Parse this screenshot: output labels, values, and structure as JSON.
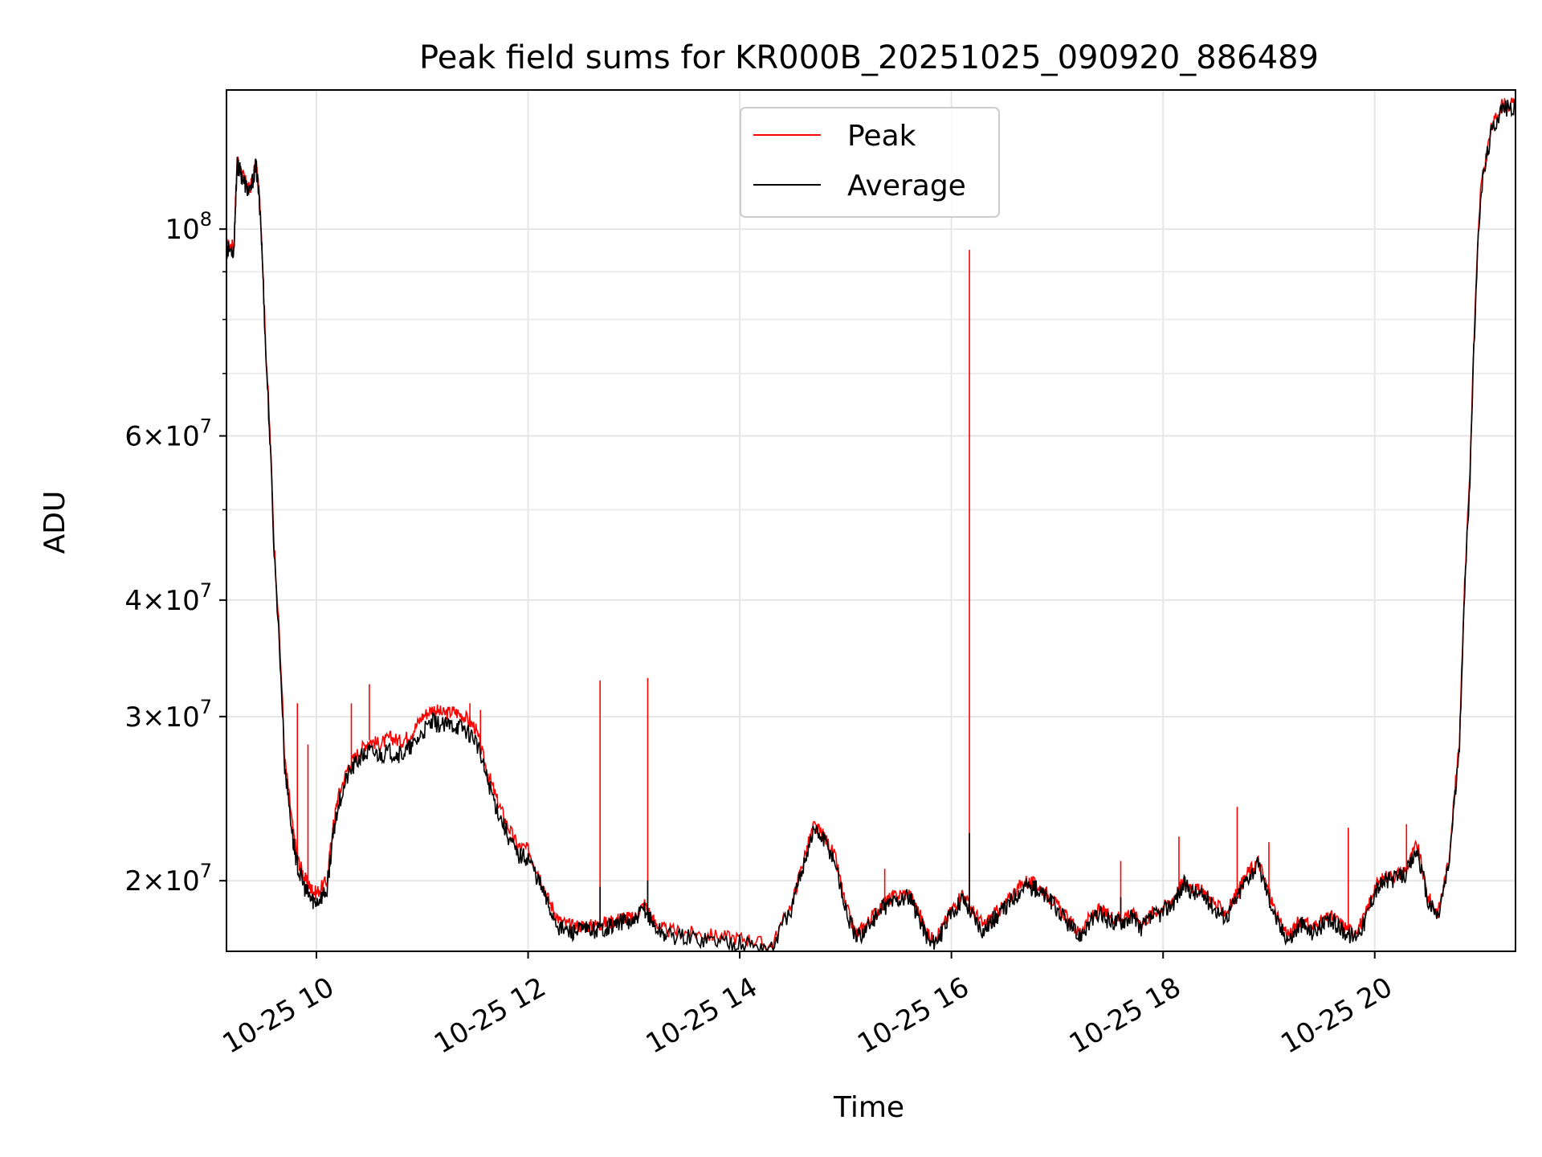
{
  "chart_data": {
    "type": "line",
    "title": "Peak field sums for KR000B_20251025_090920_886489",
    "xlabel": "Time",
    "ylabel": "ADU",
    "yscale": "log",
    "grid": true,
    "legend_position": "top-center",
    "xlim": [
      9.15,
      21.33
    ],
    "ylim": [
      16800000,
      141000000
    ],
    "x_ticks": [
      {
        "value": 10,
        "label": "10-25 10"
      },
      {
        "value": 12,
        "label": "10-25 12"
      },
      {
        "value": 14,
        "label": "10-25 14"
      },
      {
        "value": 16,
        "label": "10-25 16"
      },
      {
        "value": 18,
        "label": "10-25 18"
      },
      {
        "value": 20,
        "label": "10-25 20"
      }
    ],
    "y_ticks": [
      {
        "value": 100000000,
        "mantissa": "",
        "base": "10",
        "exp": "8"
      },
      {
        "value": 60000000,
        "mantissa": "6",
        "base": "10",
        "exp": "7"
      },
      {
        "value": 40000000,
        "mantissa": "4",
        "base": "10",
        "exp": "7"
      },
      {
        "value": 30000000,
        "mantissa": "3",
        "base": "10",
        "exp": "7"
      },
      {
        "value": 20000000,
        "mantissa": "2",
        "base": "10",
        "exp": "7"
      }
    ],
    "y_minor_ticks": [
      50000000,
      70000000,
      80000000,
      90000000
    ],
    "x_unit_note": "hours on 2025-10-25",
    "series": [
      {
        "name": "Peak",
        "color": "#ff0000",
        "x": [
          9.15,
          9.22,
          9.25,
          9.27,
          9.32,
          9.37,
          9.43,
          9.47,
          9.52,
          9.6,
          9.7,
          9.78,
          9.83,
          9.9,
          9.95,
          10.0,
          10.1,
          10.15,
          10.2,
          10.3,
          10.4,
          10.5,
          10.6,
          10.7,
          10.8,
          10.9,
          11.0,
          11.1,
          11.2,
          11.3,
          11.4,
          11.5,
          11.6,
          11.7,
          11.8,
          11.9,
          12.0,
          12.1,
          12.2,
          12.3,
          12.4,
          12.5,
          12.6,
          12.7,
          12.8,
          12.9,
          13.0,
          13.1,
          13.2,
          13.3,
          13.5,
          13.7,
          13.9,
          14.1,
          14.3,
          14.5,
          14.6,
          14.7,
          14.8,
          14.9,
          15.0,
          15.1,
          15.2,
          15.3,
          15.4,
          15.5,
          15.6,
          15.7,
          15.8,
          15.9,
          16.0,
          16.1,
          16.2,
          16.3,
          16.4,
          16.5,
          16.6,
          16.7,
          16.8,
          16.9,
          17.0,
          17.1,
          17.2,
          17.3,
          17.4,
          17.5,
          17.6,
          17.7,
          17.8,
          17.9,
          18.0,
          18.1,
          18.2,
          18.3,
          18.4,
          18.5,
          18.6,
          18.7,
          18.8,
          18.9,
          19.0,
          19.1,
          19.2,
          19.3,
          19.4,
          19.5,
          19.6,
          19.7,
          19.8,
          19.9,
          20.0,
          20.1,
          20.2,
          20.3,
          20.4,
          20.5,
          20.6,
          20.7,
          20.8,
          20.9,
          21.0,
          21.1,
          21.2,
          21.33
        ],
        "y": [
          96000000,
          96000000,
          118000000,
          117000000,
          113000000,
          110000000,
          118000000,
          105000000,
          75000000,
          46000000,
          27000000,
          22500000,
          21000000,
          20000000,
          19600000,
          19400000,
          20000000,
          22500000,
          24500000,
          26500000,
          27500000,
          28300000,
          28000000,
          28500000,
          28200000,
          28800000,
          30000000,
          30600000,
          30200000,
          30400000,
          30000000,
          29200000,
          26500000,
          24500000,
          23000000,
          21800000,
          21600000,
          20400000,
          19000000,
          18100000,
          17900000,
          17900000,
          17900000,
          18000000,
          18100000,
          18300000,
          18200000,
          18900000,
          18000000,
          17700000,
          17600000,
          17500000,
          17400000,
          17300000,
          17000000,
          19000000,
          21000000,
          22900000,
          22300000,
          21200000,
          18800000,
          17500000,
          18000000,
          18600000,
          19100000,
          19300000,
          19400000,
          18400000,
          17300000,
          17700000,
          18600000,
          19400000,
          18600000,
          17900000,
          18400000,
          18800000,
          19500000,
          20000000,
          19800000,
          19400000,
          18800000,
          18200000,
          17600000,
          18200000,
          18600000,
          18300000,
          18300000,
          18500000,
          18000000,
          18500000,
          18700000,
          19200000,
          20000000,
          19600000,
          19400000,
          18800000,
          18500000,
          19400000,
          20400000,
          21000000,
          19400000,
          18000000,
          17500000,
          18200000,
          17800000,
          18100000,
          18300000,
          17900000,
          17600000,
          18200000,
          19700000,
          20200000,
          20300000,
          20600000,
          21900000,
          19200000,
          18500000,
          21000000,
          28000000,
          55000000,
          110000000,
          128000000,
          136000000,
          136000000
        ]
      },
      {
        "name": "Average",
        "color": "#000000",
        "x": [
          9.15,
          9.22,
          9.25,
          9.27,
          9.32,
          9.37,
          9.43,
          9.47,
          9.52,
          9.6,
          9.7,
          9.78,
          9.83,
          9.9,
          9.95,
          10.0,
          10.1,
          10.15,
          10.2,
          10.3,
          10.4,
          10.5,
          10.6,
          10.7,
          10.8,
          10.9,
          11.0,
          11.1,
          11.2,
          11.3,
          11.4,
          11.5,
          11.6,
          11.7,
          11.8,
          11.9,
          12.0,
          12.1,
          12.2,
          12.3,
          12.4,
          12.5,
          12.6,
          12.7,
          12.8,
          12.9,
          13.0,
          13.1,
          13.2,
          13.3,
          13.5,
          13.7,
          13.9,
          14.1,
          14.3,
          14.5,
          14.6,
          14.7,
          14.8,
          14.9,
          15.0,
          15.1,
          15.2,
          15.3,
          15.4,
          15.5,
          15.6,
          15.7,
          15.8,
          15.9,
          16.0,
          16.1,
          16.2,
          16.3,
          16.4,
          16.5,
          16.6,
          16.7,
          16.8,
          16.9,
          17.0,
          17.1,
          17.2,
          17.3,
          17.4,
          17.5,
          17.6,
          17.7,
          17.8,
          17.9,
          18.0,
          18.1,
          18.2,
          18.3,
          18.4,
          18.5,
          18.6,
          18.7,
          18.8,
          18.9,
          19.0,
          19.1,
          19.2,
          19.3,
          19.4,
          19.5,
          19.6,
          19.7,
          19.8,
          19.9,
          20.0,
          20.1,
          20.2,
          20.3,
          20.4,
          20.5,
          20.6,
          20.7,
          20.8,
          20.9,
          21.0,
          21.1,
          21.2,
          21.33
        ],
        "y": [
          95000000,
          95000000,
          117000000,
          116000000,
          112000000,
          109000000,
          117000000,
          104000000,
          74000000,
          45000000,
          26500000,
          22000000,
          20500000,
          19500000,
          19100000,
          19000000,
          19500000,
          22000000,
          24000000,
          26000000,
          27000000,
          27500000,
          27300000,
          27500000,
          27300000,
          27800000,
          28800000,
          29600000,
          29300000,
          29400000,
          29100000,
          28400000,
          26000000,
          24000000,
          22500000,
          21300000,
          21200000,
          20000000,
          18700000,
          17800000,
          17600000,
          17700000,
          17700000,
          17800000,
          17900000,
          18100000,
          18000000,
          18700000,
          17800000,
          17500000,
          17400000,
          17300000,
          17200000,
          17100000,
          16900000,
          18800000,
          20800000,
          22700000,
          22100000,
          21000000,
          18600000,
          17300000,
          17800000,
          18400000,
          18900000,
          19100000,
          19200000,
          18200000,
          17100000,
          17500000,
          18400000,
          19200000,
          18400000,
          17700000,
          18200000,
          18600000,
          19300000,
          19800000,
          19600000,
          19200000,
          18600000,
          18000000,
          17400000,
          18000000,
          18400000,
          18100000,
          18100000,
          18300000,
          17800000,
          18300000,
          18500000,
          19000000,
          19800000,
          19400000,
          19200000,
          18600000,
          18300000,
          19200000,
          20200000,
          20800000,
          19200000,
          17800000,
          17300000,
          18000000,
          17600000,
          17900000,
          18100000,
          17700000,
          17400000,
          18000000,
          19500000,
          20000000,
          20100000,
          20400000,
          21600000,
          19000000,
          18300000,
          20800000,
          27500000,
          54000000,
          109000000,
          127000000,
          135000000,
          135000000
        ]
      }
    ],
    "peak_spikes": [
      {
        "x": 9.82,
        "y": 31000000
      },
      {
        "x": 9.92,
        "y": 28000000
      },
      {
        "x": 10.33,
        "y": 31000000
      },
      {
        "x": 10.5,
        "y": 32500000
      },
      {
        "x": 11.45,
        "y": 31000000
      },
      {
        "x": 11.55,
        "y": 30500000
      },
      {
        "x": 12.68,
        "y": 32800000
      },
      {
        "x": 13.13,
        "y": 33000000
      },
      {
        "x": 15.37,
        "y": 20600000
      },
      {
        "x": 16.17,
        "y": 95000000
      },
      {
        "x": 17.6,
        "y": 21000000
      },
      {
        "x": 18.15,
        "y": 22300000
      },
      {
        "x": 18.7,
        "y": 24000000
      },
      {
        "x": 19.0,
        "y": 22000000
      },
      {
        "x": 19.75,
        "y": 22800000
      },
      {
        "x": 20.3,
        "y": 23000000
      },
      {
        "x": 21.05,
        "y": 118000000
      }
    ],
    "average_spikes": [
      {
        "x": 12.68,
        "y": 19700000
      },
      {
        "x": 13.13,
        "y": 20000000
      },
      {
        "x": 16.17,
        "y": 22500000
      },
      {
        "x": 17.6,
        "y": 19200000
      }
    ]
  }
}
